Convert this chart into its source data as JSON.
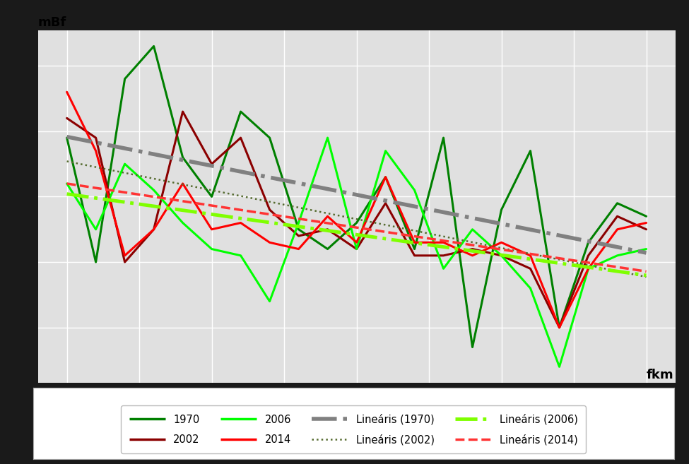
{
  "ylabel": "mBf",
  "xlabel": "fkm",
  "outer_bg": "#1a1a1a",
  "plot_bg_color": "#e0e0e0",
  "chart_border_color": "#ffffff",
  "grid_color": "#ffffff",
  "series": {
    "1970": {
      "color": "#008000",
      "lw": 2.2,
      "x": [
        0,
        1,
        2,
        3,
        4,
        5,
        6,
        7,
        8,
        9,
        10,
        11,
        12,
        13,
        14,
        15,
        16,
        17,
        18,
        19,
        20
      ],
      "y": [
        3.9,
        2.0,
        4.8,
        5.3,
        3.6,
        3.0,
        4.3,
        3.9,
        2.5,
        2.2,
        2.6,
        3.3,
        2.2,
        3.9,
        0.7,
        2.8,
        3.7,
        1.0,
        2.3,
        2.9,
        2.7
      ]
    },
    "2002": {
      "color": "#8b0000",
      "lw": 2.2,
      "x": [
        0,
        1,
        2,
        3,
        4,
        5,
        6,
        7,
        8,
        9,
        10,
        11,
        12,
        13,
        14,
        15,
        16,
        17,
        18,
        19,
        20
      ],
      "y": [
        4.2,
        3.9,
        2.0,
        2.5,
        4.3,
        3.5,
        3.9,
        2.8,
        2.4,
        2.5,
        2.2,
        2.9,
        2.1,
        2.1,
        2.2,
        2.1,
        1.9,
        1.0,
        2.1,
        2.7,
        2.5
      ]
    },
    "2006": {
      "color": "#00ff00",
      "lw": 2.2,
      "x": [
        0,
        1,
        2,
        3,
        4,
        5,
        6,
        7,
        8,
        9,
        10,
        11,
        12,
        13,
        14,
        15,
        16,
        17,
        18,
        19,
        20
      ],
      "y": [
        3.2,
        2.5,
        3.5,
        3.1,
        2.6,
        2.2,
        2.1,
        1.4,
        2.6,
        3.9,
        2.2,
        3.7,
        3.1,
        1.9,
        2.5,
        2.1,
        1.6,
        0.4,
        1.9,
        2.1,
        2.2
      ]
    },
    "2014": {
      "color": "#ff0000",
      "lw": 2.2,
      "x": [
        0,
        1,
        2,
        3,
        4,
        5,
        6,
        7,
        8,
        9,
        10,
        11,
        12,
        13,
        14,
        15,
        16,
        17,
        18,
        19,
        20
      ],
      "y": [
        4.6,
        3.7,
        2.1,
        2.5,
        3.2,
        2.5,
        2.6,
        2.3,
        2.2,
        2.7,
        2.3,
        3.3,
        2.3,
        2.3,
        2.1,
        2.3,
        2.1,
        1.0,
        1.9,
        2.5,
        2.6
      ]
    }
  },
  "trend_styles": {
    "1970": {
      "color": "#808080",
      "lw": 4.0,
      "linestyle": "dashdot"
    },
    "2002": {
      "color": "#556b2f",
      "lw": 1.8,
      "linestyle": "dotted"
    },
    "2006": {
      "color": "#7fff00",
      "lw": 3.5,
      "linestyle": "dashdot"
    },
    "2014": {
      "color": "#ff3333",
      "lw": 2.5,
      "linestyle": "dashed"
    }
  },
  "legend_labels": {
    "1970": "1970",
    "2002": "2002",
    "2006": "2006",
    "2014": "2014",
    "lin1970": "Lineáris (1970)",
    "lin2002": "Lineáris (2002)",
    "lin2006": "Lineáris (2006)",
    "lin2014": "Lineáris (2014)"
  },
  "data_colors": {
    "1970": "#008000",
    "2002": "#8b0000",
    "2006": "#00ff00",
    "2014": "#ff0000"
  }
}
